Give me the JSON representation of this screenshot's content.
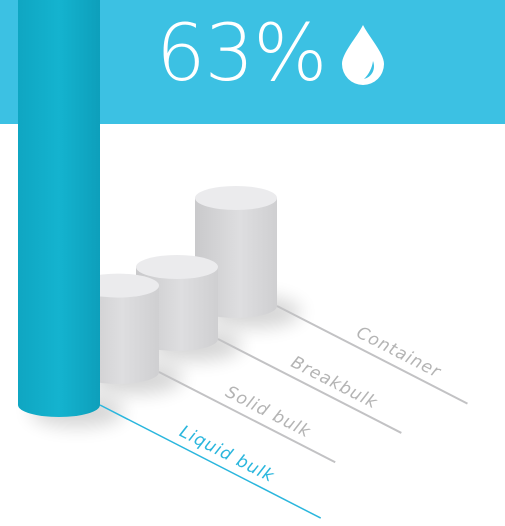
{
  "headline": {
    "value": "63%",
    "icon": "water-drop-icon"
  },
  "colors": {
    "banner": "#3cc1e3",
    "highlight_bar": "#11acc8",
    "highlight_label": "#2ab6dd",
    "muted_bar": "#dcdcde",
    "muted_label": "#b4b4b4"
  },
  "chart_data": {
    "type": "bar",
    "title": "",
    "categories": [
      "Liquid bulk",
      "Solid bulk",
      "Breakbulk",
      "Container"
    ],
    "values": [
      63,
      12,
      10,
      15
    ],
    "unit": "%",
    "highlight": "Liquid bulk"
  }
}
